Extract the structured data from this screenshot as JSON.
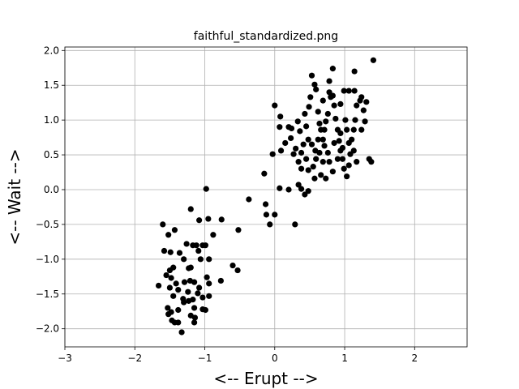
{
  "chart_data": {
    "type": "scatter",
    "title": "faithful_standardized.png",
    "x_label": "<-- Erupt -->",
    "y_label": "<-- Wait -->",
    "color": "#000000",
    "grid": true,
    "xlim": [
      -3.0,
      2.75
    ],
    "ylim": [
      -2.26,
      2.05
    ],
    "xticks": [
      {
        "value": -3,
        "label": "−3"
      },
      {
        "value": -2,
        "label": "−2"
      },
      {
        "value": -1,
        "label": "−1"
      },
      0,
      1,
      2
    ],
    "yticks": [
      {
        "value": -2,
        "label": "−2.0"
      },
      {
        "value": -1.5,
        "label": "−1.5"
      },
      {
        "value": -1,
        "label": "−1.0"
      },
      {
        "value": -0.5,
        "label": "−0.5"
      },
      {
        "value": 0,
        "label": "0.0"
      },
      0.5,
      {
        "value": 1,
        "label": "1.0"
      },
      1.5,
      {
        "value": 2,
        "label": "2.0"
      }
    ],
    "x": [
      -1.6,
      -1.52,
      -1.43,
      -1.2,
      -0.98,
      -0.95,
      -1.08,
      -0.76,
      -0.88,
      -1.26,
      -0.52,
      -1.23,
      -1.58,
      -1.49,
      -1.36,
      -1.3,
      -1.17,
      -1.12,
      -1.03,
      -0.99,
      -1.09,
      -1.06,
      -0.94,
      -1.2,
      -1.45,
      -1.5,
      -1.55,
      -1.48,
      -1.66,
      -1.5,
      -1.41,
      -1.29,
      -1.21,
      -1.15,
      -1.08,
      -0.97,
      -0.94,
      -0.77,
      -0.6,
      -0.53,
      -1.45,
      -1.38,
      -1.31,
      -1.23,
      -1.17,
      -1.1,
      -1.03,
      -0.94,
      -1.53,
      -1.48,
      -1.38,
      -1.3,
      -1.15,
      -1.03,
      -0.99,
      -1.52,
      -1.47,
      -1.38,
      -1.14,
      -1.2,
      -1.15,
      -1.33,
      -1.43,
      -1.24,
      -0.37,
      -0.13,
      -0.12,
      -0.07,
      0,
      0.07,
      0.29,
      0.2,
      -0.15,
      -0.03,
      0.09,
      0,
      0.08,
      0.07,
      0.15,
      0.2,
      0.23,
      0.24,
      0.3,
      0.33,
      0.36,
      0.27,
      0.34,
      0.38,
      0.41,
      0.45,
      0.43,
      0.49,
      0.51,
      0.57,
      0.53,
      0.59,
      0.62,
      0.64,
      0.66,
      0.48,
      0.53,
      0.58,
      0.59,
      0.55,
      0.48,
      0.45,
      0.38,
      0.34,
      0.38,
      0.48,
      0.43,
      0.64,
      0.69,
      0.71,
      0.73,
      0.76,
      0.8,
      0.78,
      0.83,
      0.85,
      0.87,
      0.9,
      0.92,
      0.94,
      0.97,
      0.99,
      1.03,
      1.06,
      1.08,
      1.1,
      1.13,
      1.15,
      1.17,
      1.22,
      1.24,
      1.27,
      1.29,
      1.24,
      1.31,
      1.35,
      1.38,
      1.14,
      0.99,
      1.06,
      1.14,
      1.41,
      0.83,
      0.94,
      1.01,
      1.03,
      0.94,
      0.85,
      0.76,
      0.78,
      0.83,
      0.73,
      0.66,
      0.57,
      0.78,
      0.69,
      0.62,
      0.71,
      0.97,
      1.06,
      1.13,
      1.17,
      0.69,
      0.9
    ],
    "values": [
      -0.5,
      -0.65,
      -0.58,
      -0.28,
      0.01,
      -0.42,
      -0.44,
      -0.43,
      -0.65,
      -0.78,
      -0.58,
      -1.13,
      -0.88,
      -0.9,
      -0.91,
      -1.0,
      -0.8,
      -0.8,
      -0.8,
      -0.8,
      -0.88,
      -1.0,
      -1.0,
      -1.12,
      -1.12,
      -1.16,
      -1.23,
      -1.27,
      -1.38,
      -1.41,
      -1.35,
      -1.33,
      -1.31,
      -1.33,
      -1.41,
      -1.26,
      -1.35,
      -1.31,
      -1.09,
      -1.16,
      -1.53,
      -1.44,
      -1.57,
      -1.6,
      -1.58,
      -1.49,
      -1.55,
      -1.53,
      -1.7,
      -1.76,
      -1.73,
      -1.62,
      -1.7,
      -1.72,
      -1.73,
      -1.79,
      -1.88,
      -1.91,
      -1.84,
      -1.81,
      -1.91,
      -2.05,
      -1.91,
      -1.47,
      -0.14,
      -0.21,
      -0.36,
      -0.5,
      -0.36,
      0.02,
      -0.5,
      0,
      0.23,
      0.51,
      0.56,
      1.21,
      1.05,
      0.9,
      0.67,
      0.9,
      0.74,
      0.88,
      0.59,
      0.98,
      0.84,
      0.51,
      0.4,
      0.53,
      0.65,
      0.91,
      1.09,
      1.19,
      1.33,
      1.51,
      1.64,
      1.44,
      1.12,
      0.95,
      0.86,
      0.72,
      0.65,
      0.56,
      0.44,
      0.33,
      0.28,
      0.44,
      0.3,
      0.07,
      0.01,
      -0.02,
      -0.07,
      0.53,
      0.72,
      0.86,
      0.98,
      1.09,
      1.33,
      1.56,
      1.35,
      1.21,
      1.02,
      0.86,
      0.7,
      0.56,
      0.44,
      0.3,
      0.19,
      0.35,
      0.51,
      0.72,
      0.86,
      1.0,
      1.21,
      1.28,
      1.33,
      1.14,
      0.98,
      0.86,
      1.26,
      0.44,
      0.4,
      1.7,
      1.42,
      1.42,
      1.42,
      1.86,
      1.74,
      1.23,
      1.0,
      0.86,
      0.81,
      0.67,
      0.53,
      0.4,
      0.26,
      0.16,
      0.21,
      0.16,
      1.4,
      1.28,
      0.72,
      0.63,
      0.6,
      0.67,
      0.56,
      0.4,
      0.4,
      0.44
    ]
  }
}
